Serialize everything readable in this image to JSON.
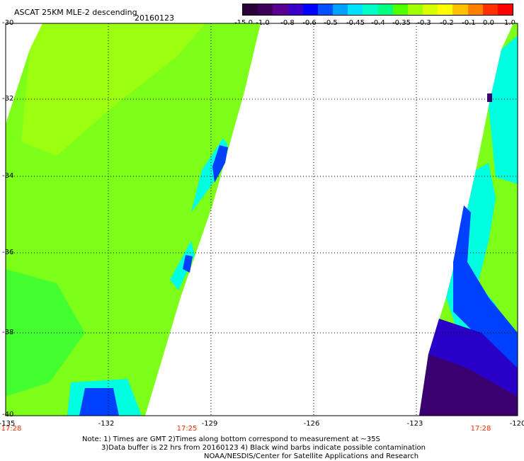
{
  "header": {
    "title": "ASCAT 25KM MLE-2 descending",
    "date": "20160123"
  },
  "colorbar": {
    "labels": [
      "-15.0",
      "-1.0",
      "-0.8",
      "-0.6",
      "-0.5",
      "-0.45",
      "-0.4",
      "-0.35",
      "-0.3",
      "-0.2",
      "-0.1",
      "0.0",
      "1.0"
    ],
    "colors": [
      "#2a0038",
      "#3c0058",
      "#5a0090",
      "#3a00c8",
      "#0000ff",
      "#0050ff",
      "#00a0ff",
      "#00e0ff",
      "#00ffc8",
      "#00ff80",
      "#50ff00",
      "#a0ff00",
      "#d8ff00",
      "#ffff00",
      "#ffc000",
      "#ff8000",
      "#ff3000",
      "#ff0000"
    ]
  },
  "axes": {
    "lat_labels": [
      "-30",
      "-32",
      "-34",
      "-36",
      "-38",
      "-40"
    ],
    "lon_labels": [
      "-135",
      "-132",
      "-129",
      "-126",
      "-123",
      "-120"
    ],
    "time_labels": [
      "17:28",
      "17:25",
      "17:28"
    ]
  },
  "footer": {
    "note_line1": "Note: 1) Times are GMT 2)Times along bottom correspond to measurement at ~35S",
    "note_line2": "3)Data buffer is 22 hrs from 20160123 4) Black wind barbs indicate possible contamination",
    "credit": "NOAA/NESDIS/Center for Satellite Applications and Research"
  },
  "map_colors": {
    "green_main": "#7dff1a",
    "green_light": "#9cff10",
    "green_dark": "#44ff30",
    "cyan": "#00ffe0",
    "blue": "#0040ff",
    "indigo": "#2800c8",
    "purple": "#3a0070"
  }
}
